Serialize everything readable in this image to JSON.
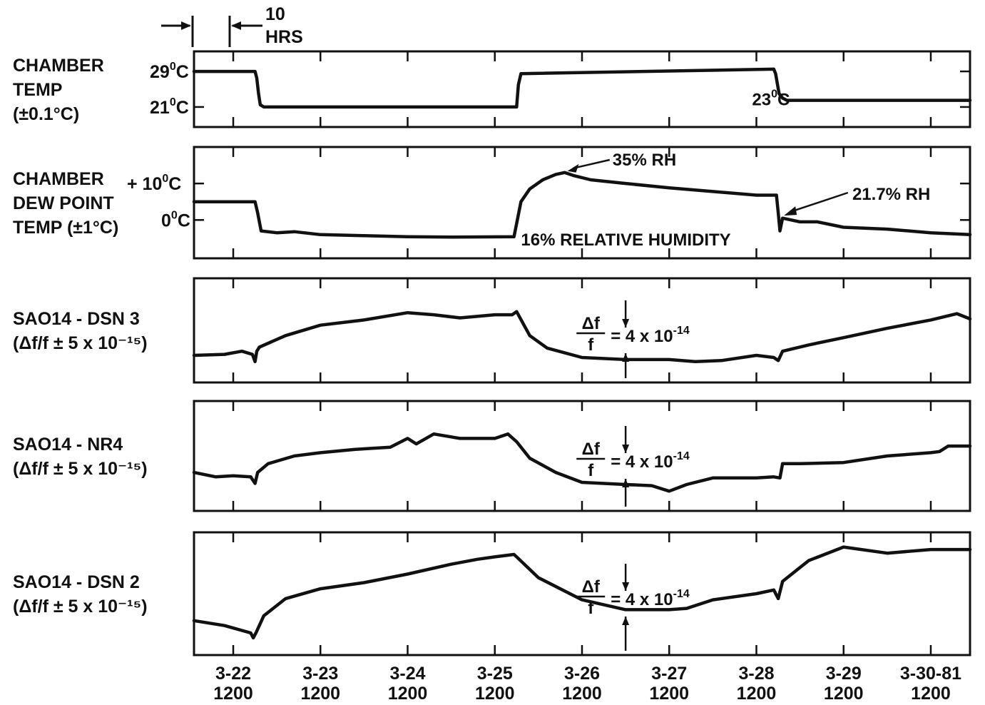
{
  "chart_data": [
    {
      "type": "line",
      "title": "",
      "ylabel_lines": [
        "CHAMBER",
        "TEMP",
        "(±0.1°C)"
      ],
      "yticks": [
        {
          "value": 29,
          "base": "29",
          "sup": "0",
          "unit": "C"
        },
        {
          "value": 21,
          "base": "21",
          "sup": "0",
          "unit": "C"
        }
      ],
      "ylim": [
        16.5,
        33.5
      ],
      "annotations": [
        {
          "base": "23",
          "sup": "0",
          "unit": "C",
          "at": {
            "t": 6.3,
            "y": 23
          }
        }
      ],
      "series": [
        {
          "x": [
            -0.45,
            0.25,
            0.27,
            0.29,
            0.31,
            0.35,
            3.22,
            3.25,
            3.27,
            3.3,
            6.2,
            6.22,
            6.26,
            6.3,
            6.35,
            8.45
          ],
          "y": [
            29,
            29,
            27.5,
            24,
            21.5,
            21,
            21,
            21,
            26,
            28.5,
            29.5,
            28.5,
            24,
            23,
            22.5,
            22.5
          ]
        }
      ]
    },
    {
      "type": "line",
      "ylabel_lines": [
        "CHAMBER",
        "DEW POINT",
        "TEMP (±1°C)"
      ],
      "yticks": [
        {
          "value": 10,
          "base": "+ 10",
          "sup": "0",
          "unit": "C"
        },
        {
          "value": 0,
          "base": "0",
          "sup": "0",
          "unit": "C"
        }
      ],
      "ylim": [
        -10.5,
        20
      ],
      "annotations": [
        {
          "text": "35% RH",
          "at": {
            "t": 3.75,
            "y": 13
          }
        },
        {
          "text": "21.7% RH",
          "at": {
            "t": 6.35,
            "y": 1
          }
        },
        {
          "text": "16% RELATIVE HUMIDITY"
        }
      ],
      "series": [
        {
          "x": [
            -0.45,
            0.25,
            0.28,
            0.32,
            0.5,
            0.7,
            1.0,
            1.5,
            2.0,
            2.5,
            3.22,
            3.25,
            3.3,
            3.4,
            3.55,
            3.7,
            3.8,
            3.9,
            4.1,
            4.5,
            5.0,
            5.5,
            6.0,
            6.23,
            6.25,
            6.27,
            6.3,
            6.5,
            6.7,
            7.0,
            7.5,
            8.0,
            8.45
          ],
          "y": [
            5,
            5,
            2,
            -3,
            -3.5,
            -3.2,
            -4,
            -4.3,
            -4.6,
            -4.7,
            -4.6,
            -1,
            5,
            8.5,
            11,
            12.5,
            13,
            12.2,
            11,
            10,
            8.8,
            7.8,
            6.8,
            6.8,
            2,
            -3,
            0.5,
            -0.5,
            -0.5,
            -2,
            -2.5,
            -3.5,
            -4
          ]
        }
      ]
    },
    {
      "type": "line",
      "ylabel_lines": [
        "SAO14 - DSN 3",
        "(Δf/f ± 5 x 10⁻¹⁵)"
      ],
      "annotations": [
        {
          "fraction": "Δf/f",
          "text": "= 4 x 10",
          "sup": "-14"
        }
      ],
      "series": [
        {
          "x": [
            -0.45,
            -0.1,
            0.1,
            0.22,
            0.25,
            0.27,
            0.3,
            0.6,
            1.0,
            1.5,
            2.0,
            2.3,
            2.6,
            3.0,
            3.2,
            3.25,
            3.4,
            3.6,
            4.0,
            4.5,
            5.0,
            5.3,
            5.6,
            6.0,
            6.2,
            6.25,
            6.3,
            6.6,
            7.0,
            7.5,
            8.0,
            8.3,
            8.45
          ],
          "y": [
            -0.4,
            -0.3,
            0.0,
            -0.3,
            -1.0,
            0.0,
            0.4,
            1.5,
            2.5,
            3.0,
            3.7,
            3.5,
            3.2,
            3.5,
            3.5,
            3.8,
            1.5,
            0.3,
            -0.6,
            -0.8,
            -0.8,
            -1.0,
            -0.9,
            -0.4,
            -0.6,
            -0.9,
            0.0,
            0.6,
            1.3,
            2.2,
            3.0,
            3.6,
            3.1
          ]
        }
      ]
    },
    {
      "type": "line",
      "ylabel_lines": [
        "SAO14 - NR4",
        "(Δf/f ± 5 x 10⁻¹⁵)"
      ],
      "annotations": [
        {
          "fraction": "Δf/f",
          "text": "= 4 x 10",
          "sup": "-14"
        }
      ],
      "series": [
        {
          "x": [
            -0.45,
            -0.2,
            0.0,
            0.2,
            0.25,
            0.28,
            0.4,
            0.7,
            1.0,
            1.4,
            1.8,
            2.0,
            2.1,
            2.3,
            2.6,
            3.0,
            3.15,
            3.25,
            3.4,
            3.7,
            4.0,
            4.5,
            4.8,
            5.0,
            5.2,
            5.5,
            6.0,
            6.2,
            6.27,
            6.3,
            6.5,
            7.0,
            7.5,
            8.0,
            8.1,
            8.2,
            8.45
          ],
          "y": [
            0.5,
            0.1,
            0.2,
            0.1,
            -0.5,
            0.5,
            1.3,
            2.0,
            2.3,
            2.6,
            2.8,
            3.6,
            3.1,
            4.0,
            3.6,
            3.6,
            4.0,
            3.3,
            1.8,
            0.5,
            -0.4,
            -0.6,
            -0.7,
            -1.2,
            -0.6,
            0.0,
            0.0,
            0.1,
            0.0,
            1.3,
            1.3,
            1.4,
            2.0,
            2.3,
            2.4,
            2.9,
            2.9
          ]
        }
      ]
    },
    {
      "type": "line",
      "ylabel_lines": [
        "SAO14 - DSN 2",
        "(Δf/f ± 5 x 10⁻¹⁵)"
      ],
      "annotations": [
        {
          "fraction": "Δf/f",
          "text": "= 4 x 10",
          "sup": "-14"
        }
      ],
      "series": [
        {
          "x": [
            -0.45,
            -0.1,
            0.2,
            0.23,
            0.26,
            0.35,
            0.6,
            1.0,
            1.5,
            2.0,
            2.5,
            2.8,
            3.0,
            3.22,
            3.25,
            3.5,
            4.0,
            4.5,
            5.0,
            5.2,
            5.5,
            6.0,
            6.2,
            6.25,
            6.3,
            6.6,
            7.0,
            7.5,
            8.0,
            8.45
          ],
          "y": [
            -0.2,
            -0.6,
            -1.2,
            -1.6,
            -1.2,
            0.2,
            1.6,
            2.4,
            2.9,
            3.6,
            4.4,
            4.8,
            5.0,
            5.2,
            5.0,
            3.3,
            1.5,
            0.7,
            0.7,
            0.8,
            1.5,
            2.0,
            2.3,
            1.6,
            3.0,
            4.7,
            5.8,
            5.3,
            5.6,
            5.6
          ]
        }
      ]
    }
  ],
  "shared_x": {
    "tick_labels": [
      {
        "date": "3-22",
        "time": "1200"
      },
      {
        "date": "3-23",
        "time": "1200"
      },
      {
        "date": "3-24",
        "time": "1200"
      },
      {
        "date": "3-25",
        "time": "1200"
      },
      {
        "date": "3-26",
        "time": "1200"
      },
      {
        "date": "3-27",
        "time": "1200"
      },
      {
        "date": "3-28",
        "time": "1200"
      },
      {
        "date": "3-29",
        "time": "1200"
      },
      {
        "date": "3-30-81",
        "time": "1200"
      }
    ],
    "scale_label": [
      "10",
      "HRS"
    ],
    "scale_hours": 10
  }
}
